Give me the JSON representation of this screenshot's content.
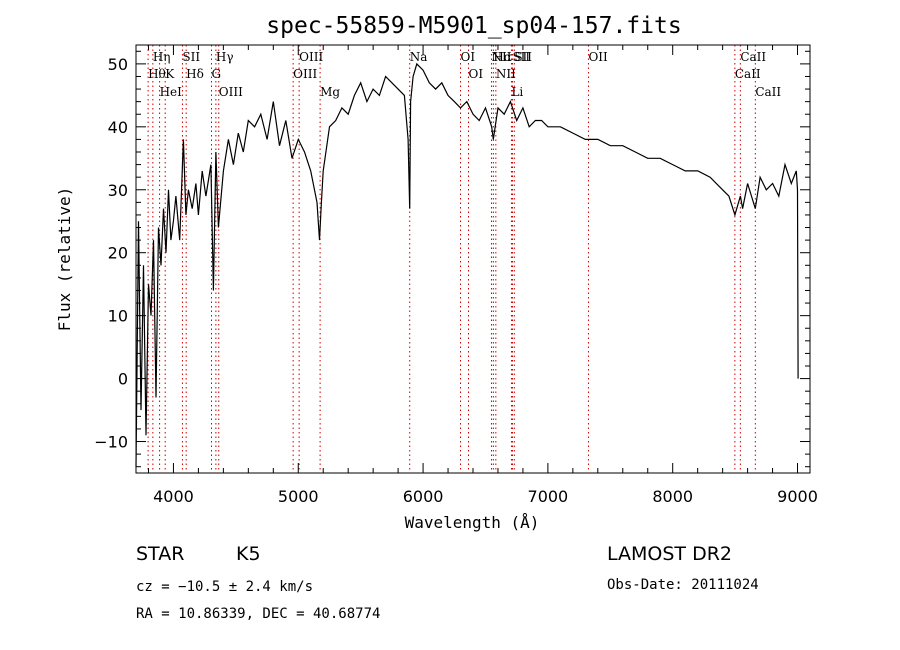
{
  "chart_data": {
    "type": "line",
    "title": "spec-55859-M5901_sp04-157.fits",
    "xlabel": "Wavelength (Å)",
    "ylabel": "Flux (relative)",
    "xlim": [
      3700,
      9100
    ],
    "ylim": [
      -15,
      53
    ],
    "xticks": [
      4000,
      5000,
      6000,
      7000,
      8000,
      9000
    ],
    "yticks": [
      -10,
      0,
      10,
      20,
      30,
      40,
      50
    ],
    "grid": false,
    "series": [
      {
        "x": [
          3700,
          3720,
          3740,
          3760,
          3780,
          3800,
          3820,
          3840,
          3860,
          3880,
          3900,
          3920,
          3940,
          3960,
          3980,
          4000,
          4020,
          4050,
          4080,
          4100,
          4120,
          4150,
          4180,
          4200,
          4230,
          4260,
          4300,
          4320,
          4340,
          4360,
          4400,
          4440,
          4480,
          4520,
          4560,
          4600,
          4650,
          4700,
          4750,
          4800,
          4850,
          4900,
          4950,
          5000,
          5050,
          5100,
          5150,
          5170,
          5185,
          5200,
          5250,
          5300,
          5350,
          5400,
          5450,
          5500,
          5550,
          5600,
          5650,
          5700,
          5750,
          5800,
          5850,
          5880,
          5893,
          5900,
          5920,
          5950,
          6000,
          6050,
          6100,
          6150,
          6200,
          6250,
          6300,
          6350,
          6400,
          6450,
          6500,
          6550,
          6563,
          6600,
          6650,
          6700,
          6750,
          6800,
          6850,
          6900,
          6950,
          7000,
          7100,
          7200,
          7300,
          7400,
          7500,
          7600,
          7700,
          7800,
          7900,
          8000,
          8100,
          8200,
          8300,
          8400,
          8450,
          8498,
          8542,
          8560,
          8600,
          8662,
          8700,
          8750,
          8800,
          8850,
          8900,
          8950,
          8990,
          9000,
          9005
        ],
        "values": [
          -14,
          25,
          -5,
          18,
          -9,
          15,
          10,
          22,
          -3,
          24,
          18,
          27,
          20,
          30,
          22,
          25,
          29,
          22,
          38,
          26,
          30,
          27,
          31,
          26,
          33,
          29,
          34,
          14,
          36,
          24,
          33,
          38,
          34,
          39,
          36,
          41,
          40,
          42,
          38,
          44,
          37,
          41,
          35,
          38,
          36,
          33,
          28,
          22,
          28,
          33,
          40,
          41,
          43,
          42,
          45,
          47,
          44,
          46,
          45,
          48,
          47,
          46,
          45,
          38,
          27,
          44,
          48,
          50,
          49,
          47,
          46,
          47,
          45,
          44,
          43,
          44,
          42,
          41,
          43,
          40,
          38,
          43,
          42,
          44,
          41,
          43,
          40,
          41,
          41,
          40,
          40,
          39,
          38,
          38,
          37,
          37,
          36,
          35,
          35,
          34,
          33,
          33,
          32,
          30,
          29,
          26,
          29,
          27,
          31,
          27,
          32,
          30,
          31,
          29,
          34,
          31,
          33,
          30,
          0
        ]
      }
    ],
    "line_markers": [
      {
        "label": "Hη",
        "x": 3835
      },
      {
        "label": "Hθ",
        "x": 3797
      },
      {
        "label": "K",
        "x": 3934
      },
      {
        "label": "HeI",
        "x": 3889
      },
      {
        "label": "SII",
        "x": 4072
      },
      {
        "label": "Hδ",
        "x": 4102
      },
      {
        "label": "Hγ",
        "x": 4340
      },
      {
        "label": "G",
        "x": 4305
      },
      {
        "label": "OIII",
        "x": 4363
      },
      {
        "label": "OIII",
        "x": 5007
      },
      {
        "label": "OIII",
        "x": 4959
      },
      {
        "label": "Mg",
        "x": 5175
      },
      {
        "label": "Na",
        "x": 5893
      },
      {
        "label": "OI",
        "x": 6300
      },
      {
        "label": "OI",
        "x": 6364
      },
      {
        "label": "Hα",
        "x": 6563
      },
      {
        "label": "SII",
        "x": 6716
      },
      {
        "label": "NII",
        "x": 6583
      },
      {
        "label": "Li",
        "x": 6708
      },
      {
        "label": "NII",
        "x": 6548
      },
      {
        "label": "SII",
        "x": 6731
      },
      {
        "label": "OII",
        "x": 7325
      },
      {
        "label": "CaII",
        "x": 8542
      },
      {
        "label": "CaII",
        "x": 8498
      },
      {
        "label": "CaII",
        "x": 8662
      }
    ]
  },
  "info": {
    "class_label": "STAR",
    "subclass_label": "K5",
    "survey": "LAMOST DR2",
    "cz": "cz = −10.5 ± 2.4 km/s",
    "obs_date": "Obs-Date: 20111024",
    "coords": "RA =  10.86339, DEC =  40.68774"
  },
  "colors": {
    "marker_line": "#cc0000",
    "spectrum": "#000000"
  }
}
